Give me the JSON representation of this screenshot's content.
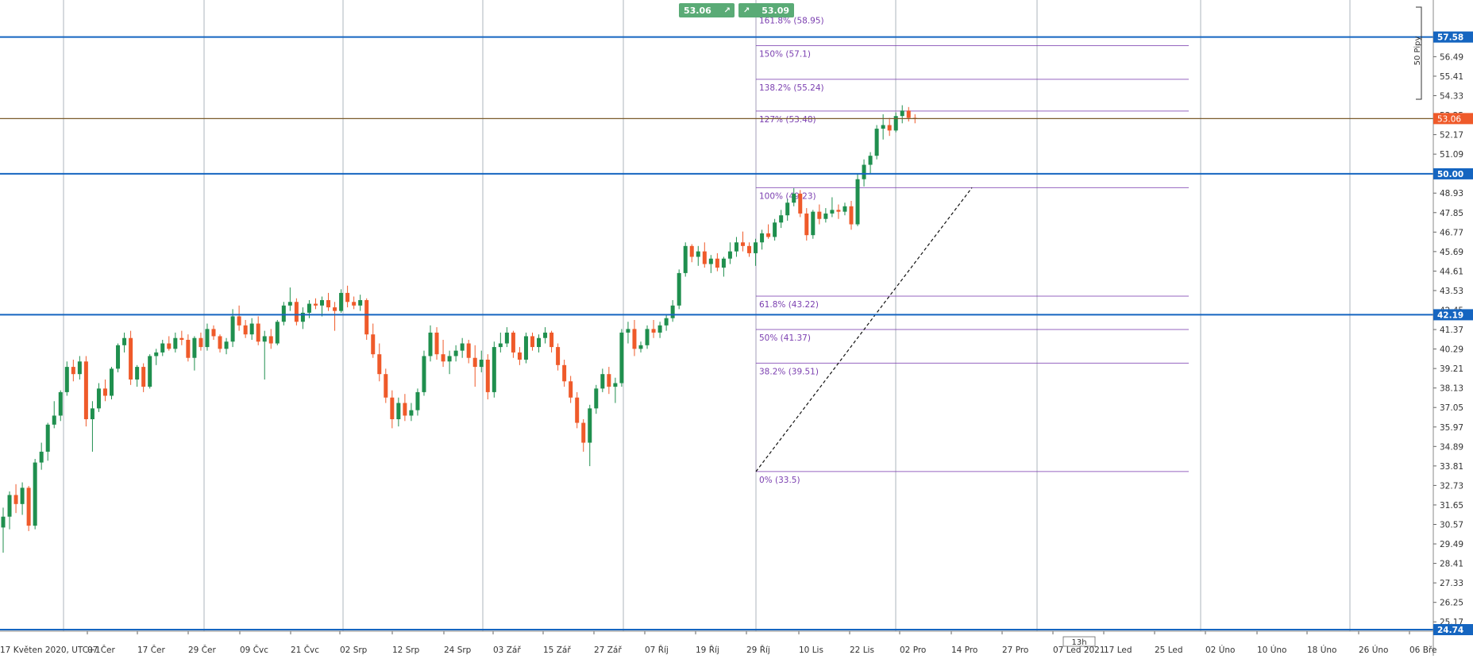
{
  "toolbar": {
    "sell_price": "53.06",
    "buy_price": "53.09",
    "sell_icon": "arrow-up-right-icon",
    "buy_icon": "arrow-up-right-icon"
  },
  "pips_label": "50 Pipy",
  "timer_label": "13h",
  "chart_data": {
    "type": "candlestick",
    "title": "",
    "y_range": [
      24.74,
      58.4
    ],
    "price_ticks": [
      "57.58",
      "56.49",
      "55.41",
      "54.33",
      "53.25",
      "52.17",
      "51.09",
      "50.00",
      "48.93",
      "47.85",
      "46.77",
      "45.69",
      "44.61",
      "43.53",
      "42.45",
      "41.37",
      "40.29",
      "39.21",
      "38.13",
      "37.05",
      "35.97",
      "34.89",
      "33.81",
      "32.73",
      "31.65",
      "30.57",
      "29.49",
      "28.41",
      "27.33",
      "26.25",
      "25.17"
    ],
    "x_labels": [
      "17 Květen 2020, UTC+1",
      "07 Čer",
      "17 Čer",
      "29 Čer",
      "09 Čvc",
      "21 Čvc",
      "02 Srp",
      "12 Srp",
      "24 Srp",
      "03 Zář",
      "15 Zář",
      "27 Zář",
      "07 Říj",
      "19 Říj",
      "29 Říj",
      "10 Lis",
      "22 Lis",
      "02 Pro",
      "14 Pro",
      "27 Pro",
      "07 Led 2021",
      "17 Led",
      "25 Led",
      "02 Úno",
      "10 Úno",
      "18 Úno",
      "26 Úno",
      "06 Bře"
    ],
    "horizontal_lines": [
      {
        "price": 57.58,
        "label": "57.58",
        "color": "#1565c0"
      },
      {
        "price": 50.0,
        "label": "50.00",
        "color": "#1565c0"
      },
      {
        "price": 42.19,
        "label": "42.19",
        "color": "#1565c0"
      },
      {
        "price": 24.74,
        "label": "24.74",
        "color": "#1565c0"
      }
    ],
    "current_price": {
      "price": 53.06,
      "label": "53.06",
      "color": "#ef5a2a"
    },
    "fibonacci": [
      {
        "label": "0% (33.5)",
        "price": 33.5
      },
      {
        "label": "38.2% (39.51)",
        "price": 39.51
      },
      {
        "label": "50% (41.37)",
        "price": 41.37
      },
      {
        "label": "61.8% (43.22)",
        "price": 43.22
      },
      {
        "label": "100% (49.23)",
        "price": 49.23
      },
      {
        "label": "127% (53.48)",
        "price": 53.48
      },
      {
        "label": "138.2% (55.24)",
        "price": 55.24
      },
      {
        "label": "150% (57.1)",
        "price": 57.1
      },
      {
        "label": "161.8% (58.95)",
        "price": 58.95
      }
    ],
    "colors": {
      "up": "#1f8f4e",
      "down": "#ef5a2a",
      "fib": "#7b3fb0",
      "grid": "#9aa3ad",
      "hline": "#1565c0"
    },
    "candles": [
      [
        30.4,
        31.5,
        29.0,
        31.0
      ],
      [
        31.0,
        32.4,
        30.3,
        32.2
      ],
      [
        32.2,
        32.8,
        31.2,
        31.7
      ],
      [
        31.7,
        32.9,
        31.1,
        32.6
      ],
      [
        32.6,
        32.7,
        30.2,
        30.5
      ],
      [
        30.5,
        34.2,
        30.3,
        34.0
      ],
      [
        34.0,
        35.1,
        33.6,
        34.6
      ],
      [
        34.6,
        36.2,
        34.1,
        36.1
      ],
      [
        36.1,
        37.4,
        35.9,
        36.6
      ],
      [
        36.6,
        38.0,
        36.3,
        37.9
      ],
      [
        37.9,
        39.6,
        37.7,
        39.3
      ],
      [
        39.3,
        39.7,
        38.5,
        38.9
      ],
      [
        38.9,
        39.9,
        38.6,
        39.6
      ],
      [
        39.6,
        39.9,
        36.0,
        36.4
      ],
      [
        36.4,
        37.4,
        34.6,
        37.0
      ],
      [
        37.0,
        38.4,
        36.8,
        38.1
      ],
      [
        38.1,
        38.6,
        37.4,
        37.7
      ],
      [
        37.7,
        39.3,
        37.5,
        39.2
      ],
      [
        39.2,
        40.6,
        39.0,
        40.5
      ],
      [
        40.5,
        41.2,
        40.1,
        40.9
      ],
      [
        40.9,
        41.3,
        38.3,
        38.6
      ],
      [
        38.6,
        39.4,
        38.2,
        39.3
      ],
      [
        39.3,
        39.5,
        37.9,
        38.2
      ],
      [
        38.2,
        40.0,
        38.1,
        39.9
      ],
      [
        39.9,
        40.3,
        39.4,
        40.1
      ],
      [
        40.1,
        40.8,
        39.9,
        40.6
      ],
      [
        40.6,
        41.0,
        40.2,
        40.3
      ],
      [
        40.3,
        41.2,
        40.1,
        40.9
      ],
      [
        40.9,
        41.3,
        40.5,
        40.8
      ],
      [
        40.8,
        41.1,
        39.6,
        39.8
      ],
      [
        39.8,
        41.0,
        39.1,
        40.9
      ],
      [
        40.9,
        41.2,
        40.2,
        40.4
      ],
      [
        40.4,
        41.7,
        40.2,
        41.4
      ],
      [
        41.4,
        41.6,
        40.8,
        41.0
      ],
      [
        41.0,
        41.1,
        40.1,
        40.3
      ],
      [
        40.3,
        40.9,
        40.0,
        40.7
      ],
      [
        40.7,
        42.5,
        40.4,
        42.1
      ],
      [
        42.1,
        42.7,
        41.3,
        41.6
      ],
      [
        41.6,
        41.9,
        40.9,
        41.1
      ],
      [
        41.1,
        42.0,
        40.8,
        41.7
      ],
      [
        41.7,
        42.1,
        40.5,
        40.7
      ],
      [
        40.7,
        41.3,
        38.6,
        41.0
      ],
      [
        41.0,
        41.4,
        40.3,
        40.6
      ],
      [
        40.6,
        41.9,
        40.5,
        41.8
      ],
      [
        41.8,
        42.9,
        41.6,
        42.7
      ],
      [
        42.7,
        43.7,
        42.4,
        42.9
      ],
      [
        42.9,
        43.1,
        41.6,
        41.8
      ],
      [
        41.8,
        42.6,
        41.4,
        42.3
      ],
      [
        42.3,
        43.0,
        42.0,
        42.8
      ],
      [
        42.8,
        43.1,
        42.5,
        42.7
      ],
      [
        42.7,
        43.2,
        42.1,
        43.0
      ],
      [
        43.0,
        43.4,
        42.4,
        42.6
      ],
      [
        42.6,
        42.9,
        41.3,
        42.4
      ],
      [
        42.4,
        43.6,
        42.3,
        43.4
      ],
      [
        43.4,
        43.8,
        42.6,
        42.9
      ],
      [
        42.9,
        43.2,
        42.5,
        42.7
      ],
      [
        42.7,
        43.3,
        42.4,
        43.0
      ],
      [
        43.0,
        43.1,
        40.8,
        41.1
      ],
      [
        41.1,
        41.7,
        39.8,
        40.0
      ],
      [
        40.0,
        40.6,
        38.5,
        38.9
      ],
      [
        38.9,
        39.2,
        37.3,
        37.6
      ],
      [
        37.6,
        38.0,
        35.9,
        36.4
      ],
      [
        36.4,
        37.6,
        36.0,
        37.3
      ],
      [
        37.3,
        37.8,
        36.3,
        36.6
      ],
      [
        36.6,
        37.3,
        36.3,
        36.9
      ],
      [
        36.9,
        38.1,
        36.6,
        37.9
      ],
      [
        37.9,
        40.2,
        37.7,
        39.9
      ],
      [
        39.9,
        41.6,
        39.6,
        41.2
      ],
      [
        41.2,
        41.5,
        39.7,
        40.0
      ],
      [
        40.0,
        40.8,
        39.3,
        39.6
      ],
      [
        39.6,
        40.2,
        38.9,
        39.9
      ],
      [
        39.9,
        40.5,
        39.6,
        40.2
      ],
      [
        40.2,
        40.9,
        39.8,
        40.6
      ],
      [
        40.6,
        40.8,
        39.5,
        39.8
      ],
      [
        39.8,
        40.5,
        38.2,
        39.3
      ],
      [
        39.3,
        40.2,
        39.0,
        39.7
      ],
      [
        39.7,
        40.0,
        37.5,
        37.9
      ],
      [
        37.9,
        40.7,
        37.6,
        40.4
      ],
      [
        40.4,
        41.2,
        40.1,
        40.6
      ],
      [
        40.6,
        41.5,
        40.4,
        41.2
      ],
      [
        41.2,
        41.3,
        39.8,
        40.1
      ],
      [
        40.1,
        40.4,
        39.4,
        39.7
      ],
      [
        39.7,
        41.2,
        39.5,
        41.0
      ],
      [
        41.0,
        41.2,
        40.2,
        40.4
      ],
      [
        40.4,
        41.1,
        40.1,
        40.9
      ],
      [
        40.9,
        41.5,
        40.6,
        41.2
      ],
      [
        41.2,
        41.3,
        40.1,
        40.4
      ],
      [
        40.4,
        40.6,
        39.1,
        39.4
      ],
      [
        39.4,
        39.7,
        38.2,
        38.5
      ],
      [
        38.5,
        38.8,
        37.3,
        37.6
      ],
      [
        37.6,
        37.9,
        35.9,
        36.2
      ],
      [
        36.2,
        36.4,
        34.6,
        35.1
      ],
      [
        35.1,
        37.2,
        33.8,
        37.0
      ],
      [
        37.0,
        38.3,
        36.7,
        38.1
      ],
      [
        38.1,
        39.2,
        37.9,
        38.9
      ],
      [
        38.9,
        39.3,
        37.8,
        38.2
      ],
      [
        38.2,
        38.7,
        37.3,
        38.4
      ],
      [
        38.4,
        41.4,
        38.2,
        41.2
      ],
      [
        41.2,
        41.8,
        40.6,
        41.4
      ],
      [
        41.4,
        41.9,
        39.9,
        40.3
      ],
      [
        40.3,
        40.7,
        40.1,
        40.5
      ],
      [
        40.5,
        41.6,
        40.3,
        41.4
      ],
      [
        41.4,
        41.9,
        40.9,
        41.2
      ],
      [
        41.2,
        41.8,
        40.9,
        41.6
      ],
      [
        41.6,
        42.2,
        41.3,
        42.0
      ],
      [
        42.0,
        43.0,
        41.8,
        42.7
      ],
      [
        42.7,
        44.7,
        42.5,
        44.5
      ],
      [
        44.5,
        46.2,
        44.3,
        46.0
      ],
      [
        46.0,
        46.1,
        45.1,
        45.4
      ],
      [
        45.4,
        46.0,
        44.9,
        45.7
      ],
      [
        45.7,
        46.2,
        44.8,
        45.0
      ],
      [
        45.0,
        45.5,
        44.5,
        45.3
      ],
      [
        45.3,
        45.6,
        44.6,
        44.8
      ],
      [
        44.8,
        45.4,
        44.3,
        45.3
      ],
      [
        45.3,
        46.2,
        45.0,
        45.7
      ],
      [
        45.7,
        46.5,
        45.4,
        46.2
      ],
      [
        46.2,
        46.8,
        45.7,
        46.0
      ],
      [
        46.0,
        46.2,
        45.4,
        45.6
      ],
      [
        45.6,
        46.4,
        44.9,
        46.2
      ],
      [
        46.2,
        46.9,
        45.8,
        46.7
      ],
      [
        46.7,
        47.2,
        46.4,
        46.5
      ],
      [
        46.5,
        47.5,
        46.3,
        47.3
      ],
      [
        47.3,
        48.0,
        47.0,
        47.7
      ],
      [
        47.7,
        48.6,
        47.4,
        48.4
      ],
      [
        48.4,
        49.2,
        48.2,
        48.9
      ],
      [
        48.9,
        49.1,
        47.6,
        47.8
      ],
      [
        47.8,
        48.1,
        46.3,
        46.6
      ],
      [
        46.6,
        48.0,
        46.4,
        47.9
      ],
      [
        47.9,
        48.3,
        47.2,
        47.5
      ],
      [
        47.5,
        48.1,
        47.3,
        47.8
      ],
      [
        47.8,
        48.7,
        47.6,
        48.0
      ],
      [
        48.0,
        48.3,
        47.5,
        47.9
      ],
      [
        47.9,
        48.4,
        47.7,
        48.2
      ],
      [
        48.2,
        48.5,
        46.9,
        47.2
      ],
      [
        47.2,
        50.0,
        47.1,
        49.7
      ],
      [
        49.7,
        50.8,
        49.3,
        50.5
      ],
      [
        50.5,
        51.2,
        50.0,
        51.0
      ],
      [
        51.0,
        52.7,
        50.8,
        52.5
      ],
      [
        52.5,
        53.3,
        51.9,
        52.7
      ],
      [
        52.7,
        53.1,
        52.1,
        52.4
      ],
      [
        52.4,
        53.4,
        52.3,
        53.2
      ],
      [
        53.2,
        53.8,
        52.8,
        53.5
      ],
      [
        53.5,
        53.7,
        52.9,
        53.1
      ],
      [
        53.1,
        53.3,
        52.8,
        53.06
      ]
    ]
  }
}
